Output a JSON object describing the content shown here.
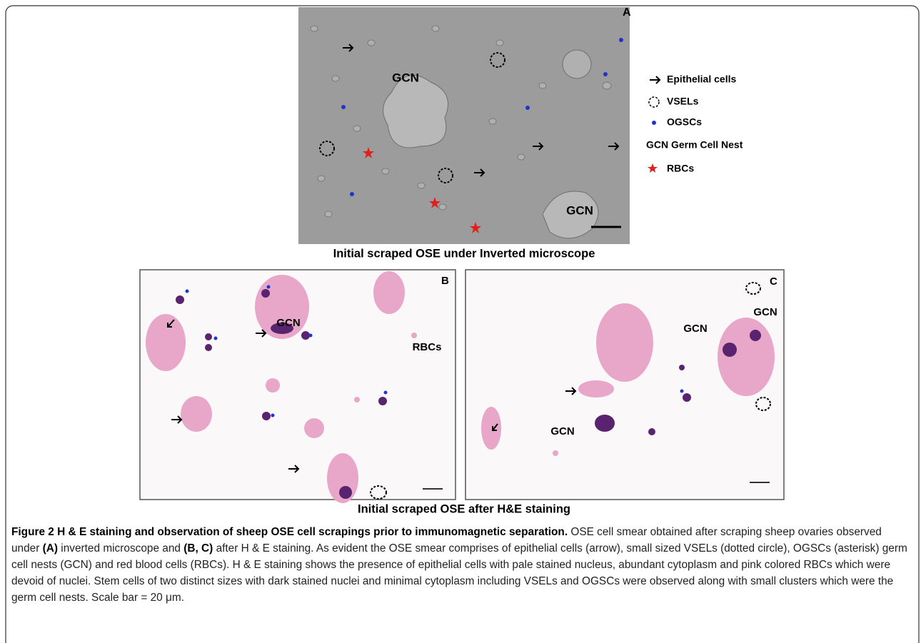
{
  "panel_a": {
    "label": "A",
    "annotations": [
      "GCN",
      "GCN"
    ],
    "legend": [
      "Epithelial cells",
      "VSELs",
      "OGSCs",
      "GCN Germ Cell Nest",
      "RBCs"
    ],
    "caption": "Initial scraped OSE under Inverted microscope"
  },
  "panel_b": {
    "label": "B",
    "annotations": [
      "GCN",
      "RBCs"
    ]
  },
  "panel_c": {
    "label": "C",
    "annotations": [
      "GCN",
      "GCN",
      "GCN"
    ],
    "caption": "Initial scraped OSE after H&E staining"
  },
  "figure_caption": {
    "label": "Figure 2",
    "title": "H & E staining and observation of sheep OSE cell scrapings prior to immunomagnetic separation.",
    "body": [
      " OSE cell smear obtained after scraping sheep ovaries observed under ",
      "(A)",
      " inverted microscope and ",
      "(B, C)",
      " after H & E staining. As evident the OSE smear comprises of epithelial cells (arrow), small sized VSELs (dotted circle), OGSCs (asterisk) germ cell nests (GCN) and red blood cells (RBCs). H & E staining shows the presence of epithelial cells with pale stained nucleus, abundant cytoplasm and pink colored RBCs which were devoid of nuclei. Stem cells of two distinct sizes with dark stained nuclei and minimal cytoplasm including VSELs and OGSCs were observed along with small clusters which were the germ cell nests. Scale bar = 20 μm."
    ]
  }
}
